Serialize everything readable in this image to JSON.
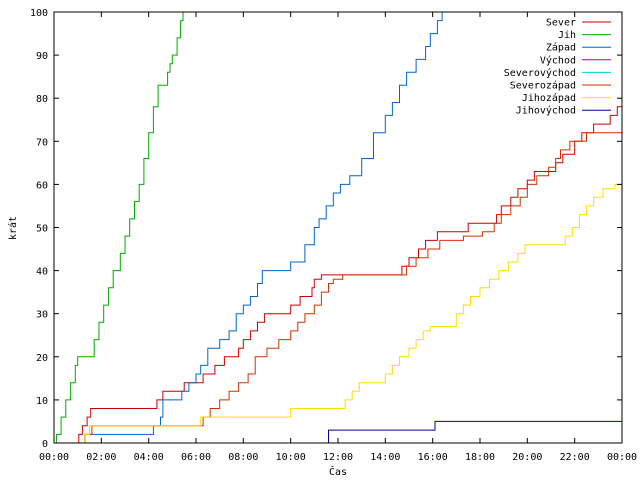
{
  "chart_data": {
    "type": "line",
    "xlabel": "Čas",
    "ylabel": "krát",
    "xlim": [
      0,
      24
    ],
    "ylim": [
      0,
      100
    ],
    "x_ticks": [
      {
        "value": 0,
        "label": "00:00"
      },
      {
        "value": 2,
        "label": "02:00"
      },
      {
        "value": 4,
        "label": "04:00"
      },
      {
        "value": 6,
        "label": "06:00"
      },
      {
        "value": 8,
        "label": "08:00"
      },
      {
        "value": 10,
        "label": "10:00"
      },
      {
        "value": 12,
        "label": "12:00"
      },
      {
        "value": 14,
        "label": "14:00"
      },
      {
        "value": 16,
        "label": "16:00"
      },
      {
        "value": 18,
        "label": "18:00"
      },
      {
        "value": 20,
        "label": "20:00"
      },
      {
        "value": 22,
        "label": "22:00"
      },
      {
        "value": 24,
        "label": "00:00"
      }
    ],
    "y_ticks": [
      0,
      10,
      20,
      30,
      40,
      50,
      60,
      70,
      80,
      90,
      100
    ],
    "grid": false,
    "legend_position": "top-right",
    "series": [
      {
        "name": "Sever",
        "color": "#cc0000",
        "points": [
          [
            0,
            0
          ],
          [
            1.0,
            0
          ],
          [
            1.05,
            2
          ],
          [
            1.2,
            4
          ],
          [
            1.4,
            6
          ],
          [
            1.55,
            8
          ],
          [
            4.2,
            8
          ],
          [
            4.35,
            10
          ],
          [
            4.6,
            12
          ],
          [
            5.4,
            12
          ],
          [
            5.5,
            14
          ],
          [
            6.0,
            14
          ],
          [
            6.3,
            16
          ],
          [
            6.8,
            18
          ],
          [
            7.2,
            20
          ],
          [
            7.8,
            22
          ],
          [
            8.0,
            24
          ],
          [
            8.3,
            26
          ],
          [
            8.6,
            28
          ],
          [
            8.9,
            30
          ],
          [
            9.7,
            30
          ],
          [
            10.0,
            32
          ],
          [
            10.4,
            34
          ],
          [
            10.9,
            36
          ],
          [
            11.0,
            38
          ],
          [
            11.3,
            39
          ],
          [
            14.5,
            39
          ],
          [
            14.7,
            41
          ],
          [
            15.0,
            43
          ],
          [
            15.4,
            45
          ],
          [
            15.7,
            47
          ],
          [
            16.2,
            49
          ],
          [
            17.3,
            49
          ],
          [
            17.5,
            51
          ],
          [
            18.5,
            51
          ],
          [
            18.7,
            53
          ],
          [
            18.9,
            55
          ],
          [
            19.3,
            57
          ],
          [
            19.6,
            59
          ],
          [
            20.0,
            61
          ],
          [
            20.3,
            63
          ],
          [
            21.0,
            63
          ],
          [
            21.2,
            65
          ],
          [
            21.5,
            67
          ],
          [
            22.0,
            70
          ],
          [
            22.3,
            72
          ],
          [
            22.8,
            74
          ],
          [
            23.5,
            76
          ],
          [
            23.8,
            78
          ],
          [
            24,
            80
          ]
        ]
      },
      {
        "name": "Jih",
        "color": "#00aa00",
        "points": [
          [
            0,
            0
          ],
          [
            0.1,
            2
          ],
          [
            0.3,
            6
          ],
          [
            0.5,
            10
          ],
          [
            0.7,
            14
          ],
          [
            0.9,
            18
          ],
          [
            1.0,
            20
          ],
          [
            1.5,
            20
          ],
          [
            1.7,
            24
          ],
          [
            1.9,
            28
          ],
          [
            2.1,
            32
          ],
          [
            2.3,
            36
          ],
          [
            2.5,
            40
          ],
          [
            2.6,
            40
          ],
          [
            2.8,
            44
          ],
          [
            3.0,
            48
          ],
          [
            3.2,
            52
          ],
          [
            3.4,
            56
          ],
          [
            3.6,
            60
          ],
          [
            3.8,
            66
          ],
          [
            4.0,
            72
          ],
          [
            4.2,
            78
          ],
          [
            4.4,
            83
          ],
          [
            4.6,
            83
          ],
          [
            4.8,
            86
          ],
          [
            4.9,
            88
          ],
          [
            5.0,
            90
          ],
          [
            5.2,
            94
          ],
          [
            5.35,
            98
          ],
          [
            5.45,
            100
          ]
        ]
      },
      {
        "name": "Západ",
        "color": "#0066cc",
        "points": [
          [
            0,
            0
          ],
          [
            1.2,
            0
          ],
          [
            1.3,
            2
          ],
          [
            2.2,
            2
          ],
          [
            2.5,
            2
          ],
          [
            4.0,
            2
          ],
          [
            4.2,
            4
          ],
          [
            4.5,
            6
          ],
          [
            4.6,
            10
          ],
          [
            5.0,
            10
          ],
          [
            5.4,
            12
          ],
          [
            5.7,
            14
          ],
          [
            6.0,
            16
          ],
          [
            6.2,
            18
          ],
          [
            6.5,
            22
          ],
          [
            7.0,
            24
          ],
          [
            7.4,
            26
          ],
          [
            7.7,
            30
          ],
          [
            8.0,
            32
          ],
          [
            8.3,
            34
          ],
          [
            8.6,
            37
          ],
          [
            8.8,
            40
          ],
          [
            9.8,
            40
          ],
          [
            10.0,
            42
          ],
          [
            10.6,
            46
          ],
          [
            11.0,
            50
          ],
          [
            11.2,
            52
          ],
          [
            11.5,
            55
          ],
          [
            11.8,
            58
          ],
          [
            12.1,
            60
          ],
          [
            12.5,
            62
          ],
          [
            13.0,
            66
          ],
          [
            13.5,
            72
          ],
          [
            14.0,
            76
          ],
          [
            14.3,
            79
          ],
          [
            14.6,
            83
          ],
          [
            14.9,
            86
          ],
          [
            15.3,
            89
          ],
          [
            15.7,
            92
          ],
          [
            15.9,
            95
          ],
          [
            16.2,
            98
          ],
          [
            16.4,
            100
          ]
        ]
      },
      {
        "name": "Východ",
        "color": "#9900cc",
        "points": []
      },
      {
        "name": "Severovýchod",
        "color": "#00cccc",
        "points": []
      },
      {
        "name": "Severozápad",
        "color": "#cc3300",
        "points": [
          [
            0,
            0
          ],
          [
            1.1,
            0
          ],
          [
            1.3,
            2
          ],
          [
            1.6,
            4
          ],
          [
            6.0,
            4
          ],
          [
            6.3,
            6
          ],
          [
            6.6,
            8
          ],
          [
            7.0,
            10
          ],
          [
            7.4,
            12
          ],
          [
            7.8,
            14
          ],
          [
            8.2,
            16
          ],
          [
            8.5,
            20
          ],
          [
            9.0,
            22
          ],
          [
            9.5,
            24
          ],
          [
            10.0,
            26
          ],
          [
            10.3,
            28
          ],
          [
            10.6,
            30
          ],
          [
            11.0,
            32
          ],
          [
            11.3,
            35
          ],
          [
            11.6,
            37
          ],
          [
            11.8,
            38
          ],
          [
            12.2,
            39
          ],
          [
            12.8,
            39
          ],
          [
            13.2,
            39
          ],
          [
            14.6,
            39
          ],
          [
            14.9,
            41
          ],
          [
            15.3,
            43
          ],
          [
            15.8,
            45
          ],
          [
            16.3,
            47
          ],
          [
            17.3,
            48
          ],
          [
            18.1,
            49
          ],
          [
            18.6,
            51
          ],
          [
            18.9,
            53
          ],
          [
            19.3,
            55
          ],
          [
            19.7,
            57
          ],
          [
            20.0,
            60
          ],
          [
            20.4,
            62
          ],
          [
            20.9,
            64
          ],
          [
            21.2,
            66
          ],
          [
            21.4,
            68
          ],
          [
            21.8,
            70
          ],
          [
            22.5,
            72
          ],
          [
            24,
            73
          ]
        ]
      },
      {
        "name": "Jihozápad",
        "color": "#ffdd00",
        "points": [
          [
            0,
            0
          ],
          [
            1.2,
            0
          ],
          [
            1.3,
            2
          ],
          [
            1.5,
            4
          ],
          [
            6.0,
            4
          ],
          [
            6.2,
            6
          ],
          [
            9.8,
            6
          ],
          [
            10.0,
            8
          ],
          [
            12.0,
            8
          ],
          [
            12.3,
            10
          ],
          [
            12.6,
            12
          ],
          [
            12.9,
            14
          ],
          [
            13.8,
            14
          ],
          [
            14.0,
            16
          ],
          [
            14.3,
            18
          ],
          [
            14.6,
            20
          ],
          [
            15.0,
            22
          ],
          [
            15.3,
            24
          ],
          [
            15.6,
            26
          ],
          [
            15.9,
            27
          ],
          [
            16.7,
            27
          ],
          [
            17.0,
            30
          ],
          [
            17.3,
            32
          ],
          [
            17.6,
            34
          ],
          [
            18.0,
            36
          ],
          [
            18.4,
            38
          ],
          [
            18.8,
            40
          ],
          [
            19.2,
            42
          ],
          [
            19.6,
            44
          ],
          [
            19.9,
            46
          ],
          [
            21.4,
            46
          ],
          [
            21.6,
            48
          ],
          [
            21.9,
            50
          ],
          [
            22.2,
            53
          ],
          [
            22.5,
            55
          ],
          [
            22.8,
            57
          ],
          [
            23.2,
            59
          ],
          [
            23.7,
            60
          ],
          [
            24,
            61
          ]
        ]
      },
      {
        "name": "Jihovýchod",
        "color": "#000099",
        "points": [
          [
            0,
            0
          ],
          [
            11.5,
            0
          ],
          [
            11.6,
            3
          ],
          [
            16.0,
            3
          ],
          [
            16.1,
            5
          ],
          [
            24,
            5
          ]
        ]
      }
    ]
  }
}
